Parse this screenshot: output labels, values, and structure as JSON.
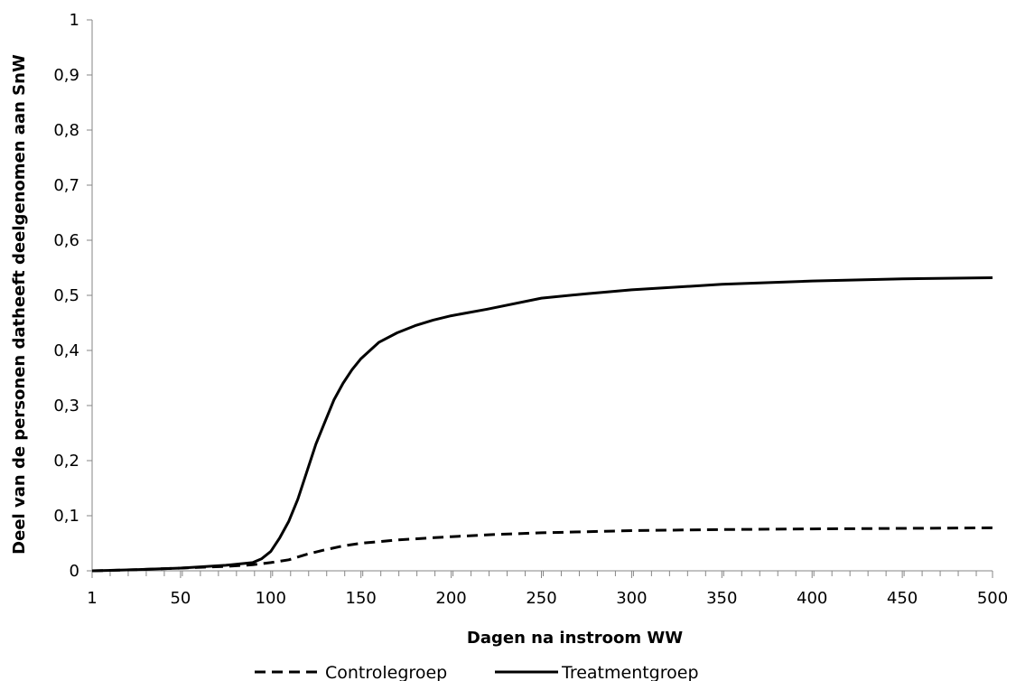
{
  "chart_data": {
    "type": "line",
    "title": "",
    "xlabel": "Dagen na instroom WW",
    "ylabel": "Deel van de personen datheeft deelgenomen aan SnW",
    "xlim": [
      1,
      500
    ],
    "ylim": [
      0,
      1
    ],
    "x_tick_labels": [
      "1",
      "50",
      "100",
      "150",
      "200",
      "250",
      "300",
      "350",
      "400",
      "450",
      "500"
    ],
    "x_tick_values": [
      1,
      50,
      100,
      150,
      200,
      250,
      300,
      350,
      400,
      450,
      500
    ],
    "y_tick_labels": [
      "0",
      "0,1",
      "0,2",
      "0,3",
      "0,4",
      "0,5",
      "0,6",
      "0,7",
      "0,8",
      "0,9",
      "1"
    ],
    "y_tick_values": [
      0,
      0.1,
      0.2,
      0.3,
      0.4,
      0.5,
      0.6,
      0.7,
      0.8,
      0.9,
      1
    ],
    "grid": false,
    "legend_position": "bottom",
    "series": [
      {
        "name": "Controlegroep",
        "style": "dashed",
        "color": "#000000",
        "x": [
          1,
          25,
          50,
          75,
          90,
          100,
          110,
          120,
          130,
          140,
          150,
          160,
          170,
          180,
          200,
          225,
          250,
          275,
          300,
          350,
          400,
          450,
          500
        ],
        "y": [
          0,
          0.002,
          0.005,
          0.008,
          0.011,
          0.015,
          0.02,
          0.03,
          0.038,
          0.045,
          0.05,
          0.053,
          0.056,
          0.058,
          0.062,
          0.066,
          0.069,
          0.071,
          0.073,
          0.075,
          0.076,
          0.077,
          0.078
        ]
      },
      {
        "name": "Treatmentgroep",
        "style": "solid",
        "color": "#000000",
        "x": [
          1,
          25,
          50,
          75,
          90,
          95,
          100,
          105,
          110,
          115,
          120,
          125,
          130,
          135,
          140,
          145,
          150,
          155,
          160,
          170,
          180,
          190,
          200,
          220,
          250,
          275,
          300,
          350,
          400,
          450,
          500
        ],
        "y": [
          0,
          0.002,
          0.005,
          0.01,
          0.015,
          0.022,
          0.035,
          0.06,
          0.09,
          0.13,
          0.18,
          0.23,
          0.27,
          0.31,
          0.34,
          0.365,
          0.385,
          0.4,
          0.415,
          0.432,
          0.445,
          0.455,
          0.463,
          0.475,
          0.495,
          0.503,
          0.51,
          0.52,
          0.526,
          0.53,
          0.532
        ]
      }
    ]
  }
}
